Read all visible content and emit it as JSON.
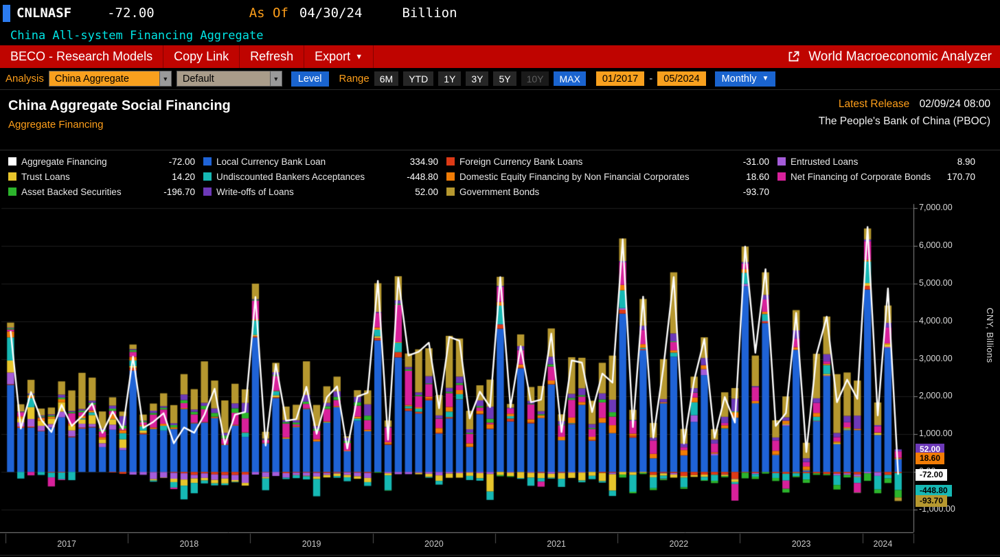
{
  "terminal": {
    "ticker": "CNLNASF",
    "value": "-72.00",
    "as_of_label": "As Of",
    "as_of_date": "04/30/24",
    "unit": "Billion",
    "security_name": "China All-system Financing Aggregate"
  },
  "menu_bar": {
    "items": [
      "BECO - Research Models",
      "Copy Link",
      "Refresh",
      "Export"
    ],
    "right_title": "World Macroeconomic Analyzer"
  },
  "toolbar": {
    "analysis_label": "Analysis",
    "analysis_value": "China Aggregate",
    "preset_value": "Default",
    "level_button": "Level",
    "range_label": "Range",
    "range_buttons": [
      "6M",
      "YTD",
      "1Y",
      "3Y",
      "5Y",
      "10Y",
      "MAX"
    ],
    "date_from": "01/2017",
    "date_separator": "-",
    "date_to": "05/2024",
    "frequency": "Monthly"
  },
  "chart_header": {
    "title": "China Aggregate Social Financing",
    "subtitle": "Aggregate Financing",
    "latest_release_label": "Latest Release",
    "latest_release_value": "02/09/24 08:00",
    "source": "The People's Bank of China (PBOC)"
  },
  "legend": {
    "items": [
      {
        "name": "Aggregate Financing",
        "value": "-72.00",
        "color": "#ffffff"
      },
      {
        "name": "Local Currency Bank Loan",
        "value": "334.90",
        "color": "#1f63d6"
      },
      {
        "name": "Foreign Currency Bank Loans",
        "value": "-31.00",
        "color": "#dd3a16"
      },
      {
        "name": "Entrusted Loans",
        "value": "8.90",
        "color": "#a55cd9"
      },
      {
        "name": "Trust Loans",
        "value": "14.20",
        "color": "#e7c52c"
      },
      {
        "name": "Undiscounted Bankers Acceptances",
        "value": "-448.80",
        "color": "#16b8b4"
      },
      {
        "name": "Domestic Equity Financing by Non Financial Corporates",
        "value": "18.60",
        "color": "#f17c06"
      },
      {
        "name": "Net Financing of Corporate Bonds",
        "value": "170.70",
        "color": "#d8219b"
      },
      {
        "name": "Asset Backed Securities",
        "value": "-196.70",
        "color": "#2cb42c"
      },
      {
        "name": "Write-offs of Loans",
        "value": "52.00",
        "color": "#6d39b8"
      },
      {
        "name": "Government Bonds",
        "value": "-93.70",
        "color": "#b6982f"
      }
    ]
  },
  "chart_data": {
    "type": "bar",
    "subtype": "stacked-bar-with-line",
    "title": "China Aggregate Social Financing",
    "ylabel": "CNY, Billions",
    "frequency": "monthly",
    "x_start": "2017-01",
    "x_end": "2024-04",
    "years": [
      "2017",
      "2018",
      "2019",
      "2020",
      "2021",
      "2022",
      "2023",
      "2024"
    ],
    "ylim": [
      -1600,
      7000
    ],
    "yticks": [
      {
        "v": 7000,
        "label": "7,000.00"
      },
      {
        "v": 6000,
        "label": "6,000.00"
      },
      {
        "v": 5000,
        "label": "5,000.00"
      },
      {
        "v": 4000,
        "label": "4,000.00"
      },
      {
        "v": 3000,
        "label": "3,000.00"
      },
      {
        "v": 2000,
        "label": "2,000.00"
      },
      {
        "v": 1000,
        "label": "1,000.00"
      },
      {
        "v": 0,
        "label": "0.00"
      },
      {
        "v": -1000,
        "label": "-1,000.00"
      }
    ],
    "series": [
      {
        "key": "bank_loan",
        "name": "Local Currency Bank Loan",
        "color": "#1f63d6",
        "values": [
          2310,
          1170,
          1180,
          1080,
          1180,
          1450,
          920,
          1150,
          1180,
          660,
          1120,
          580,
          2690,
          1000,
          1140,
          1100,
          1140,
          1670,
          1290,
          1310,
          1430,
          720,
          1230,
          930,
          3570,
          760,
          1960,
          880,
          1190,
          1670,
          810,
          1300,
          1720,
          550,
          1360,
          1080,
          3490,
          720,
          3040,
          1620,
          1550,
          1900,
          1020,
          1420,
          1920,
          660,
          1530,
          1140,
          3800,
          1340,
          2750,
          1290,
          1430,
          2320,
          839,
          1270,
          1780,
          826,
          1300,
          1030,
          4200,
          910,
          3230,
          362,
          1820,
          3060,
          434,
          1330,
          2570,
          441,
          1140,
          1440,
          4930,
          1820,
          3950,
          444,
          1220,
          3240,
          36,
          1340,
          2540,
          738,
          1110,
          1110,
          4840,
          980,
          3290,
          334.9
        ]
      },
      {
        "key": "fx_loans",
        "name": "Foreign Currency Bank Loans",
        "color": "#dd3a16",
        "values": [
          18,
          36,
          26,
          15,
          -18,
          -15,
          21,
          28,
          16,
          1,
          -15,
          -49,
          76,
          34,
          -4,
          -3,
          -22,
          -36,
          -77,
          -38,
          -65,
          -80,
          -79,
          -70,
          34,
          -10,
          22,
          -33,
          -19,
          -18,
          -22,
          -28,
          -21,
          -12,
          -18,
          -26,
          61,
          24,
          138,
          65,
          46,
          43,
          24,
          37,
          8,
          7,
          16,
          12,
          112,
          75,
          26,
          29,
          -18,
          12,
          -13,
          13,
          -1,
          16,
          -27,
          -19,
          103,
          48,
          24,
          -76,
          -24,
          -29,
          -110,
          -83,
          -71,
          -72,
          -65,
          -180,
          -13,
          -31,
          43,
          -32,
          -49,
          -19,
          -34,
          -37,
          -58,
          -48,
          -36,
          -64,
          99,
          -9,
          -78,
          -31
        ]
      },
      {
        "key": "entrusted",
        "name": "Entrusted Loans",
        "color": "#a55cd9",
        "values": [
          310,
          110,
          200,
          130,
          90,
          150,
          160,
          102,
          78,
          101,
          135,
          60,
          -71,
          -75,
          -186,
          -148,
          -157,
          -164,
          -95,
          -120,
          -145,
          -95,
          -136,
          -220,
          -70,
          -126,
          -107,
          -119,
          -63,
          -83,
          -99,
          -51,
          -22,
          -67,
          -96,
          -133,
          7,
          -36,
          -59,
          -58,
          -27,
          -48,
          -91,
          -42,
          -32,
          -17,
          -31,
          -56,
          9,
          -17,
          -4,
          -21,
          -13,
          -47,
          -15,
          -18,
          -16,
          6,
          6,
          -42,
          43,
          -7,
          11,
          -2,
          -13,
          -38,
          9,
          175,
          158,
          47,
          -9,
          -10,
          58,
          -25,
          17,
          8,
          35,
          -5,
          8,
          10,
          21,
          -43,
          -39,
          -56,
          -36,
          -95,
          30,
          8.9
        ]
      },
      {
        "key": "trust",
        "name": "Trust Loans",
        "color": "#e7c52c",
        "values": [
          318,
          106,
          312,
          130,
          148,
          250,
          123,
          118,
          236,
          102,
          143,
          228,
          46,
          66,
          -36,
          -9,
          -90,
          -164,
          -119,
          -69,
          -91,
          -129,
          -47,
          -72,
          35,
          -37,
          53,
          13,
          -5,
          -15,
          -68,
          -66,
          -67,
          -62,
          -67,
          -110,
          43,
          -54,
          -1,
          2,
          -34,
          -85,
          -145,
          -112,
          -119,
          -87,
          -137,
          -463,
          -84,
          -94,
          -157,
          -130,
          -132,
          -107,
          -152,
          -139,
          -209,
          -102,
          -217,
          -434,
          -68,
          -75,
          -26,
          -62,
          -62,
          -83,
          -40,
          -47,
          -61,
          -6,
          -37,
          -76,
          -6,
          7,
          -4,
          12,
          30,
          -15,
          23,
          10,
          40,
          39,
          20,
          -18,
          73,
          57,
          68,
          14.2
        ]
      },
      {
        "key": "acceptances",
        "name": "Undiscounted Bankers Acceptances",
        "color": "#16b8b4",
        "values": [
          613,
          -175,
          240,
          -80,
          -126,
          -180,
          -217,
          24,
          72,
          1,
          6,
          160,
          144,
          110,
          -32,
          124,
          -145,
          -364,
          -274,
          -77,
          -55,
          -45,
          -13,
          109,
          379,
          -311,
          109,
          -36,
          -77,
          -82,
          -456,
          16,
          -43,
          -105,
          57,
          -101,
          174,
          -396,
          250,
          58,
          84,
          -21,
          -100,
          144,
          135,
          -110,
          -63,
          -222,
          491,
          64,
          -22,
          -215,
          -93,
          -22,
          -216,
          15,
          -48,
          -89,
          -38,
          -142,
          473,
          -443,
          29,
          -290,
          -78,
          107,
          -257,
          343,
          -83,
          -157,
          19,
          -55,
          296,
          -70,
          179,
          -128,
          -180,
          -69,
          -166,
          104,
          234,
          -255,
          20,
          -154,
          573,
          -361,
          -95,
          -448.8
        ]
      },
      {
        "key": "equity",
        "name": "Domestic Equity Financing by Non Financial Corporates",
        "color": "#f17c06",
        "values": [
          159,
          54,
          76,
          77,
          51,
          83,
          54,
          63,
          51,
          60,
          126,
          80,
          100,
          38,
          40,
          53,
          44,
          26,
          17,
          14,
          27,
          18,
          20,
          13,
          29,
          12,
          12,
          26,
          26,
          15,
          59,
          26,
          29,
          18,
          52,
          44,
          61,
          45,
          20,
          32,
          35,
          54,
          121,
          126,
          109,
          93,
          77,
          114,
          99,
          69,
          78,
          81,
          72,
          96,
          94,
          147,
          77,
          85,
          130,
          211,
          144,
          59,
          96,
          119,
          29,
          59,
          140,
          127,
          101,
          32,
          79,
          146,
          96,
          57,
          61,
          99,
          75,
          70,
          79,
          103,
          33,
          32,
          36,
          35,
          42,
          11,
          23,
          18.6
        ]
      },
      {
        "key": "corp_bonds",
        "name": "Net Financing of Corporate Bonds",
        "color": "#d8219b",
        "values": [
          54,
          110,
          -90,
          20,
          -240,
          -20,
          280,
          100,
          150,
          150,
          90,
          44,
          130,
          70,
          340,
          380,
          -40,
          130,
          220,
          340,
          9,
          150,
          320,
          370,
          499,
          81,
          390,
          366,
          47,
          120,
          224,
          330,
          160,
          200,
          290,
          250,
          386,
          387,
          985,
          907,
          297,
          334,
          245,
          364,
          138,
          253,
          86,
          44,
          396,
          131,
          375,
          394,
          -134,
          369,
          306,
          468,
          142,
          207,
          410,
          226,
          596,
          337,
          379,
          354,
          -10,
          220,
          73,
          124,
          9,
          232,
          60,
          -440,
          149,
          364,
          326,
          273,
          -217,
          226,
          118,
          268,
          66,
          116,
          133,
          -260,
          495,
          160,
          420,
          170.7
        ]
      },
      {
        "key": "abs",
        "name": "Asset Backed Securities",
        "color": "#2cb42c",
        "values": [
          30,
          10,
          20,
          25,
          30,
          40,
          35,
          45,
          50,
          40,
          60,
          80,
          50,
          30,
          45,
          50,
          60,
          80,
          70,
          90,
          100,
          80,
          120,
          150,
          20,
          15,
          30,
          40,
          50,
          60,
          55,
          70,
          80,
          60,
          90,
          120,
          -20,
          -10,
          30,
          40,
          30,
          20,
          10,
          40,
          50,
          30,
          40,
          100,
          -30,
          -20,
          10,
          20,
          30,
          60,
          20,
          50,
          40,
          30,
          80,
          120,
          -80,
          -40,
          -30,
          -50,
          -30,
          20,
          -40,
          10,
          -20,
          -60,
          -30,
          20,
          -150,
          -60,
          -40,
          -80,
          -100,
          -30,
          -90,
          -40,
          -30,
          -120,
          -70,
          -10,
          -200,
          -100,
          -120,
          -196.7
        ]
      },
      {
        "key": "writeoffs",
        "name": "Write-offs of Loans",
        "color": "#6d39b8",
        "values": [
          20,
          10,
          30,
          25,
          30,
          80,
          30,
          40,
          60,
          40,
          80,
          250,
          25,
          15,
          60,
          40,
          50,
          150,
          60,
          80,
          120,
          70,
          130,
          260,
          20,
          18,
          70,
          50,
          60,
          180,
          70,
          90,
          150,
          80,
          140,
          300,
          25,
          20,
          90,
          60,
          70,
          190,
          80,
          100,
          170,
          90,
          150,
          320,
          30,
          25,
          100,
          70,
          80,
          200,
          90,
          110,
          180,
          100,
          160,
          330,
          35,
          25,
          110,
          75,
          85,
          210,
          95,
          115,
          185,
          105,
          165,
          340,
          40,
          30,
          120,
          80,
          90,
          220,
          100,
          120,
          190,
          110,
          170,
          350,
          45,
          35,
          125,
          52
        ]
      },
      {
        "key": "gov_bonds",
        "name": "Government Bonds",
        "color": "#b6982f",
        "values": [
          130,
          190,
          360,
          180,
          180,
          350,
          540,
          960,
          610,
          450,
          220,
          120,
          120,
          160,
          190,
          340,
          480,
          540,
          540,
          1100,
          740,
          860,
          520,
          360,
          410,
          180,
          250,
          360,
          410,
          890,
          560,
          440,
          390,
          36,
          180,
          370,
          760,
          170,
          640,
          360,
          1140,
          740,
          540,
          1380,
          1010,
          490,
          400,
          720,
          240,
          100,
          310,
          370,
          670,
          750,
          180,
          970,
          810,
          620,
          810,
          1170,
          600,
          270,
          710,
          390,
          1060,
          1620,
          390,
          305,
          550,
          279,
          650,
          280,
          410,
          810,
          600,
          455,
          555,
          538,
          411,
          1180,
          999,
          1560,
          1150,
          930,
          293,
          600,
          460,
          -93.7
        ]
      }
    ],
    "line": {
      "key": "line",
      "name": "Aggregate Financing",
      "color": "#ffffff",
      "values": [
        3740,
        1150,
        2120,
        1390,
        1060,
        1780,
        1220,
        1480,
        1820,
        1040,
        1600,
        1140,
        3060,
        1170,
        1330,
        1560,
        760,
        1180,
        1040,
        1520,
        2210,
        730,
        1520,
        1590,
        4640,
        700,
        2860,
        1360,
        1400,
        2260,
        1010,
        1980,
        2270,
        620,
        2000,
        2100,
        5070,
        855,
        5150,
        3090,
        3190,
        3430,
        1690,
        3580,
        3480,
        1420,
        2130,
        1720,
        5170,
        1710,
        3340,
        1850,
        1920,
        3670,
        1060,
        2960,
        2900,
        1590,
        2610,
        2370,
        6170,
        1190,
        4650,
        910,
        2790,
        5170,
        756,
        2430,
        3530,
        907,
        1990,
        1310,
        5980,
        3160,
        5380,
        1220,
        1560,
        4220,
        528,
        3120,
        4120,
        1850,
        2450,
        1940,
        6500,
        1500,
        4870,
        -72
      ]
    }
  },
  "badges": [
    {
      "series": "writeoffs",
      "label": "52.00",
      "bg": "#6d39b8",
      "fg": "#ffffff"
    },
    {
      "series": "equity",
      "label": "18.60",
      "bg": "#f17c06",
      "fg": "#000000"
    },
    {
      "series": "line",
      "label": "-72.00",
      "bg": "#ffffff",
      "fg": "#000000"
    },
    {
      "series": "acceptances",
      "label": "-448.80",
      "bg": "#16b8b4",
      "fg": "#000000"
    },
    {
      "series": "gov_bonds",
      "label": "-93.70",
      "bg": "#b6982f",
      "fg": "#000000"
    }
  ]
}
